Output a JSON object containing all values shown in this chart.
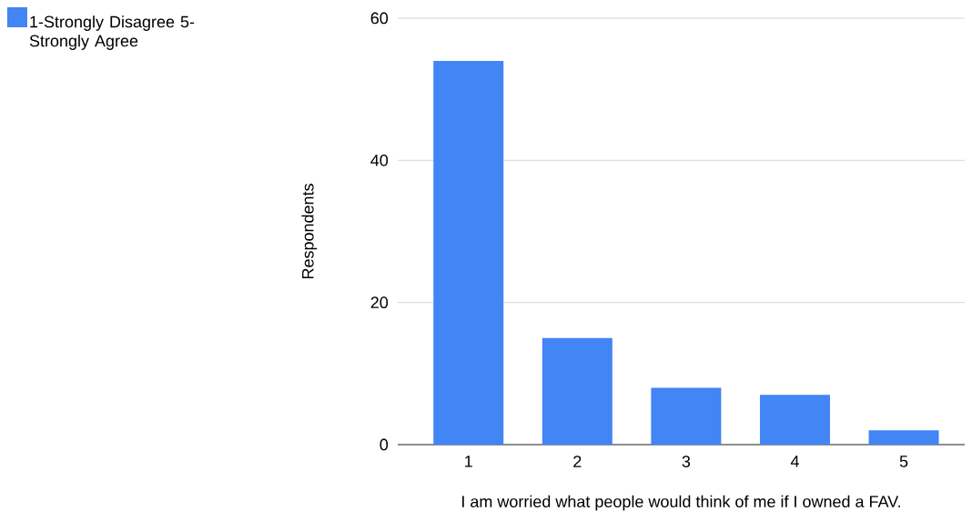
{
  "chart_data": {
    "type": "bar",
    "xlabel": "I am worried what people would think of me if I owned a FAV.",
    "ylabel": "Respondents",
    "categories": [
      "1",
      "2",
      "3",
      "4",
      "5"
    ],
    "series": [
      {
        "name": "1-Strongly Disagree 5-Strongly Agree",
        "color": "#4285f4",
        "values": [
          54,
          15,
          8,
          7,
          2
        ]
      }
    ],
    "ylim": [
      0,
      60
    ],
    "yticks": [
      0,
      20,
      40,
      60
    ],
    "grid": "y",
    "legend": "top left"
  }
}
